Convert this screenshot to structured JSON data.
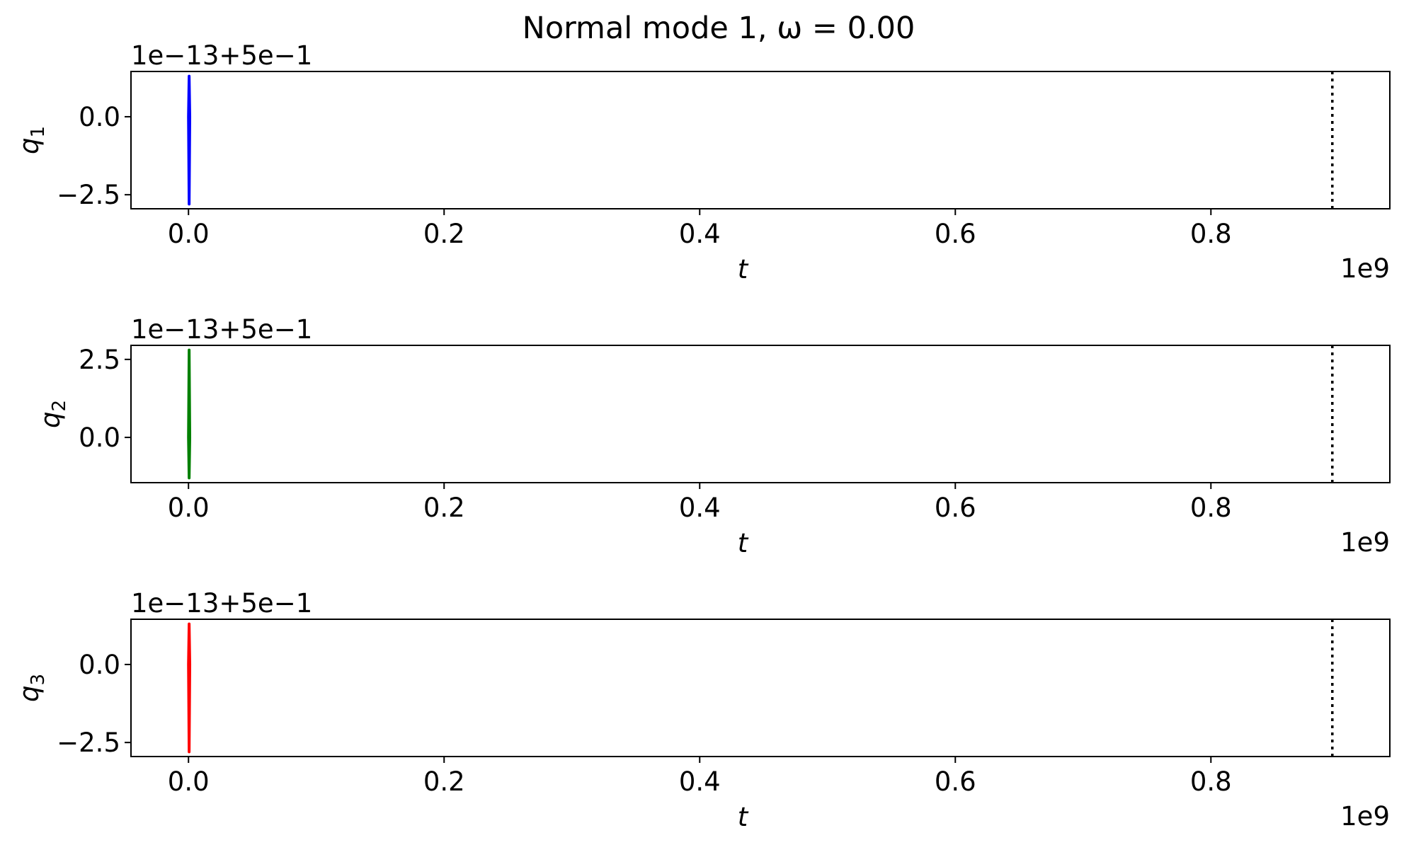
{
  "chart_data": {
    "type": "line",
    "title": "Normal mode 1, ω = 0.00",
    "panels": [
      {
        "name": "q1",
        "ylabel_base": "q",
        "ylabel_sub": "1",
        "xlabel": "t",
        "x_offset_label": "1e9",
        "y_offset_label": "1e−13+5e−1",
        "xlim": [
          -0.045,
          0.94
        ],
        "ylim": [
          -2.95,
          1.45
        ],
        "xticks": [
          0.0,
          0.2,
          0.4,
          0.6,
          0.8
        ],
        "xtick_labels": [
          "0.0",
          "0.2",
          "0.4",
          "0.6",
          "0.8"
        ],
        "yticks": [
          0.0,
          -2.5
        ],
        "ytick_labels": [
          "0.0",
          "−2.5"
        ],
        "series": [
          {
            "color": "#0000ff",
            "x": [
              0.0,
              0.0005,
              0.001,
              0.0005,
              0.0
            ],
            "y": [
              0.0,
              1.3,
              0.0,
              -2.8,
              0.0
            ]
          }
        ],
        "vline": {
          "x": 0.895,
          "style": "dotted",
          "color": "#000000"
        }
      },
      {
        "name": "q2",
        "ylabel_base": "q",
        "ylabel_sub": "2",
        "xlabel": "t",
        "x_offset_label": "1e9",
        "y_offset_label": "1e−13+5e−1",
        "xlim": [
          -0.045,
          0.94
        ],
        "ylim": [
          -1.45,
          2.95
        ],
        "xticks": [
          0.0,
          0.2,
          0.4,
          0.6,
          0.8
        ],
        "xtick_labels": [
          "0.0",
          "0.2",
          "0.4",
          "0.6",
          "0.8"
        ],
        "yticks": [
          2.5,
          0.0
        ],
        "ytick_labels": [
          "2.5",
          "0.0"
        ],
        "series": [
          {
            "color": "#008000",
            "x": [
              0.0,
              0.0005,
              0.001,
              0.0005,
              0.0
            ],
            "y": [
              0.0,
              2.8,
              0.0,
              -1.3,
              0.0
            ]
          }
        ],
        "vline": {
          "x": 0.895,
          "style": "dotted",
          "color": "#000000"
        }
      },
      {
        "name": "q3",
        "ylabel_base": "q",
        "ylabel_sub": "3",
        "xlabel": "t",
        "x_offset_label": "1e9",
        "y_offset_label": "1e−13+5e−1",
        "xlim": [
          -0.045,
          0.94
        ],
        "ylim": [
          -2.95,
          1.45
        ],
        "xticks": [
          0.0,
          0.2,
          0.4,
          0.6,
          0.8
        ],
        "xtick_labels": [
          "0.0",
          "0.2",
          "0.4",
          "0.6",
          "0.8"
        ],
        "yticks": [
          0.0,
          -2.5
        ],
        "ytick_labels": [
          "0.0",
          "−2.5"
        ],
        "series": [
          {
            "color": "#ff0000",
            "x": [
              0.0,
              0.0005,
              0.001,
              0.0005,
              0.0
            ],
            "y": [
              0.0,
              1.3,
              0.0,
              -2.8,
              0.0
            ]
          }
        ],
        "vline": {
          "x": 0.895,
          "style": "dotted",
          "color": "#000000"
        }
      }
    ]
  }
}
